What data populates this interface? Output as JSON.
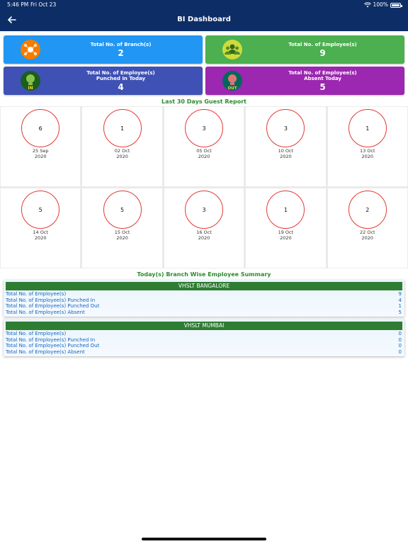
{
  "status_bar": {
    "time": "5:46 PM",
    "date": "Fri Oct 23",
    "battery": "100%"
  },
  "header": {
    "title": "BI Dashboard"
  },
  "cards": [
    {
      "label": "Total No. of Branch(s)",
      "value": "2",
      "color": "#2196f3"
    },
    {
      "label": "Total No. of Employee(s)",
      "value": "9",
      "color": "#4caf50"
    },
    {
      "label": "Total No. of Employee(s)\nPunched In Today",
      "value": "4",
      "color": "#3f51b5"
    },
    {
      "label": "Total No. of Employee(s)\nAbsent Today",
      "value": "5",
      "color": "#9c27b0"
    }
  ],
  "guest_report": {
    "title": "Last 30 Days Guest Report",
    "items": [
      {
        "count": "6",
        "day": "25 Sep",
        "year": "2020"
      },
      {
        "count": "1",
        "day": "02 Oct",
        "year": "2020"
      },
      {
        "count": "3",
        "day": "05 Oct",
        "year": "2020"
      },
      {
        "count": "3",
        "day": "10 Oct",
        "year": "2020"
      },
      {
        "count": "1",
        "day": "13 Oct",
        "year": "2020"
      },
      {
        "count": "5",
        "day": "14 Oct",
        "year": "2020"
      },
      {
        "count": "5",
        "day": "15 Oct",
        "year": "2020"
      },
      {
        "count": "3",
        "day": "16 Oct",
        "year": "2020"
      },
      {
        "count": "1",
        "day": "19 Oct",
        "year": "2020"
      },
      {
        "count": "2",
        "day": "22 Oct",
        "year": "2020"
      }
    ]
  },
  "branch_summary": {
    "title": "Today(s) Branch Wise Employee Summary",
    "branches": [
      {
        "name": "VHSLT BANGALORE",
        "rows": [
          {
            "label": "Total No. of Employee(s)",
            "value": "9"
          },
          {
            "label": "Total No. of Employee(s) Punched In",
            "value": "4"
          },
          {
            "label": "Total No. of Employee(s) Punched Out",
            "value": "1"
          },
          {
            "label": "Total No. of Employee(s) Absent",
            "value": "5"
          }
        ]
      },
      {
        "name": "VHSLT MUMBAI",
        "rows": [
          {
            "label": "Total No. of Employee(s)",
            "value": "0"
          },
          {
            "label": "Total No. of Employee(s) Punched In",
            "value": "0"
          },
          {
            "label": "Total No. of Employee(s) Punched Out",
            "value": "0"
          },
          {
            "label": "Total No. of Employee(s) Absent",
            "value": "0"
          }
        ]
      }
    ]
  },
  "colors": {
    "header": "#0d2d66",
    "accent_green": "#2e8b2e",
    "circle_border": "#e53935",
    "summary_text": "#1565c0"
  }
}
